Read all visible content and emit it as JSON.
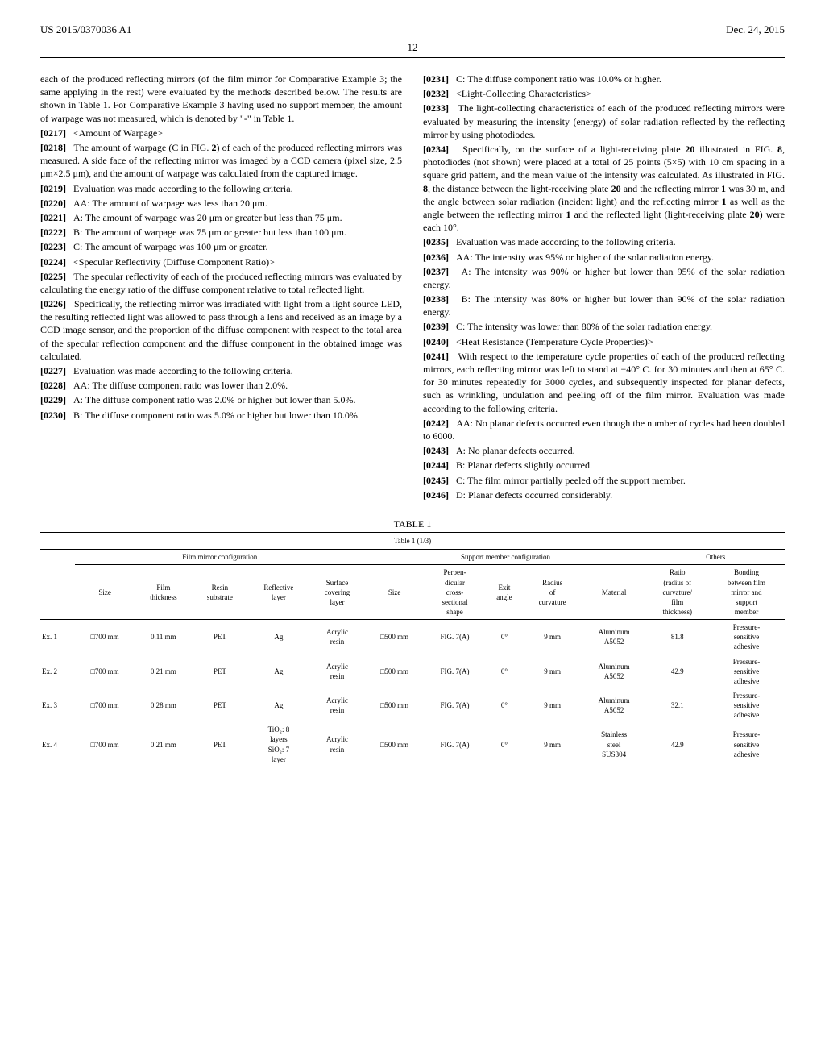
{
  "header": {
    "pub_number": "US 2015/0370036 A1",
    "pub_date": "Dec. 24, 2015",
    "page_number": "12"
  },
  "left_column": {
    "intro": "each of the produced reflecting mirrors (of the film mirror for Comparative Example 3; the same applying in the rest) were evaluated by the methods described below. The results are shown in Table 1. For Comparative Example 3 having used no support member, the amount of warpage was not measured, which is denoted by \"-\" in Table 1.",
    "p0217_label": "[0217]",
    "p0217": "<Amount of Warpage>",
    "p0218_label": "[0218]",
    "p0218a": "The amount of warpage (C in FIG. ",
    "p0218_fig": "2",
    "p0218b": ") of each of the produced reflecting mirrors was measured. A side face of the reflecting mirror was imaged by a CCD camera (pixel size, 2.5 μm×2.5 μm), and the amount of warpage was calculated from the captured image.",
    "p0219_label": "[0219]",
    "p0219": "Evaluation was made according to the following criteria.",
    "p0220_label": "[0220]",
    "p0220": "AA: The amount of warpage was less than 20 μm.",
    "p0221_label": "[0221]",
    "p0221": "A: The amount of warpage was 20 μm or greater but less than 75 μm.",
    "p0222_label": "[0222]",
    "p0222": "B: The amount of warpage was 75 μm or greater but less than 100 μm.",
    "p0223_label": "[0223]",
    "p0223": "C: The amount of warpage was 100 μm or greater.",
    "p0224_label": "[0224]",
    "p0224": "<Specular Reflectivity (Diffuse Component Ratio)>",
    "p0225_label": "[0225]",
    "p0225": "The specular reflectivity of each of the produced reflecting mirrors was evaluated by calculating the energy ratio of the diffuse component relative to total reflected light.",
    "p0226_label": "[0226]",
    "p0226": "Specifically, the reflecting mirror was irradiated with light from a light source LED, the resulting reflected light was allowed to pass through a lens and received as an image by a CCD image sensor, and the proportion of the diffuse component with respect to the total area of the specular reflection component and the diffuse component in the obtained image was calculated.",
    "p0227_label": "[0227]",
    "p0227": "Evaluation was made according to the following criteria.",
    "p0228_label": "[0228]",
    "p0228": "AA: The diffuse component ratio was lower than 2.0%.",
    "p0229_label": "[0229]",
    "p0229": "A: The diffuse component ratio was 2.0% or higher but lower than 5.0%.",
    "p0230_label": "[0230]",
    "p0230": "B: The diffuse component ratio was 5.0% or higher but lower than 10.0%."
  },
  "right_column": {
    "p0231_label": "[0231]",
    "p0231": "C: The diffuse component ratio was 10.0% or higher.",
    "p0232_label": "[0232]",
    "p0232": "<Light-Collecting Characteristics>",
    "p0233_label": "[0233]",
    "p0233": "The light-collecting characteristics of each of the produced reflecting mirrors were evaluated by measuring the intensity (energy) of solar radiation reflected by the reflecting mirror by using photodiodes.",
    "p0234_label": "[0234]",
    "p0234a": "Specifically, on the surface of a light-receiving plate ",
    "p0234_ref20a": "20",
    "p0234b": " illustrated in FIG. ",
    "p0234_fig8a": "8",
    "p0234c": ", photodiodes (not shown) were placed at a total of 25 points (5×5) with 10 cm spacing in a square grid pattern, and the mean value of the intensity was calculated. As illustrated in FIG. ",
    "p0234_fig8b": "8",
    "p0234d": ", the distance between the light-receiving plate ",
    "p0234_ref20b": "20",
    "p0234e": " and the reflecting mirror ",
    "p0234_ref1a": "1",
    "p0234f": " was 30 m, and the angle between solar radiation (incident light) and the reflecting mirror ",
    "p0234_ref1b": "1",
    "p0234g": " as well as the angle between the reflecting mirror ",
    "p0234_ref1c": "1",
    "p0234h": " and the reflected light (light-receiving plate ",
    "p0234_ref20c": "20",
    "p0234i": ") were each 10°.",
    "p0235_label": "[0235]",
    "p0235": "Evaluation was made according to the following criteria.",
    "p0236_label": "[0236]",
    "p0236": "AA: The intensity was 95% or higher of the solar radiation energy.",
    "p0237_label": "[0237]",
    "p0237": "A: The intensity was 90% or higher but lower than 95% of the solar radiation energy.",
    "p0238_label": "[0238]",
    "p0238": "B: The intensity was 80% or higher but lower than 90% of the solar radiation energy.",
    "p0239_label": "[0239]",
    "p0239": "C: The intensity was lower than 80% of the solar radiation energy.",
    "p0240_label": "[0240]",
    "p0240": "<Heat Resistance (Temperature Cycle Properties)>",
    "p0241_label": "[0241]",
    "p0241": "With respect to the temperature cycle properties of each of the produced reflecting mirrors, each reflecting mirror was left to stand at −40° C. for 30 minutes and then at 65° C. for 30 minutes repeatedly for 3000 cycles, and subsequently inspected for planar defects, such as wrinkling, undulation and peeling off of the film mirror. Evaluation was made according to the following criteria.",
    "p0242_label": "[0242]",
    "p0242": "AA: No planar defects occurred even though the number of cycles had been doubled to 6000.",
    "p0243_label": "[0243]",
    "p0243": "A: No planar defects occurred.",
    "p0244_label": "[0244]",
    "p0244": "B: Planar defects slightly occurred.",
    "p0245_label": "[0245]",
    "p0245": "C: The film mirror partially peeled off the support member.",
    "p0246_label": "[0246]",
    "p0246": "D: Planar defects occurred considerably."
  },
  "table": {
    "caption": "TABLE 1",
    "subcaption": "Table 1 (1/3)",
    "group_headers": {
      "film": "Film mirror configuration",
      "support": "Support member configuration",
      "others": "Others"
    },
    "columns": {
      "blank": "",
      "size1": "Size",
      "film_thickness": "Film\nthickness",
      "resin_substrate": "Resin\nsubstrate",
      "reflective_layer": "Reflective\nlayer",
      "surface_covering": "Surface\ncovering\nlayer",
      "size2": "Size",
      "cross_section": "Perpen-\ndicular\ncross-\nsectional\nshape",
      "exit_angle": "Exit\nangle",
      "radius": "Radius\nof\ncurvature",
      "material": "Material",
      "ratio": "Ratio\n(radius of\ncurvature/\nfilm\nthickness)",
      "bonding": "Bonding\nbetween film\nmirror and\nsupport\nmember"
    },
    "rows": [
      {
        "ex": "Ex. 1",
        "size1": "□700 mm",
        "ft": "0.11 mm",
        "rs": "PET",
        "rl": "Ag",
        "sc": "Acrylic\nresin",
        "size2": "□500 mm",
        "cs": "FIG. 7(A)",
        "ea": "0°",
        "rad": "9 mm",
        "mat": "Aluminum\nA5052",
        "ratio": "81.8",
        "bond": "Pressure-\nsensitive\nadhesive"
      },
      {
        "ex": "Ex. 2",
        "size1": "□700 mm",
        "ft": "0.21 mm",
        "rs": "PET",
        "rl": "Ag",
        "sc": "Acrylic\nresin",
        "size2": "□500 mm",
        "cs": "FIG. 7(A)",
        "ea": "0°",
        "rad": "9 mm",
        "mat": "Aluminum\nA5052",
        "ratio": "42.9",
        "bond": "Pressure-\nsensitive\nadhesive"
      },
      {
        "ex": "Ex. 3",
        "size1": "□700 mm",
        "ft": "0.28 mm",
        "rs": "PET",
        "rl": "Ag",
        "sc": "Acrylic\nresin",
        "size2": "□500 mm",
        "cs": "FIG. 7(A)",
        "ea": "0°",
        "rad": "9 mm",
        "mat": "Aluminum\nA5052",
        "ratio": "32.1",
        "bond": "Pressure-\nsensitive\nadhesive"
      },
      {
        "ex": "Ex. 4",
        "size1": "□700 mm",
        "ft": "0.21 mm",
        "rs": "PET",
        "rl": "TiO₂: 8\nlayers\nSiO₂: 7\nlayer",
        "sc": "Acrylic\nresin",
        "size2": "□500 mm",
        "cs": "FIG. 7(A)",
        "ea": "0°",
        "rad": "9 mm",
        "mat": "Stainless\nsteel\nSUS304",
        "ratio": "42.9",
        "bond": "Pressure-\nsensitive\nadhesive"
      }
    ]
  }
}
